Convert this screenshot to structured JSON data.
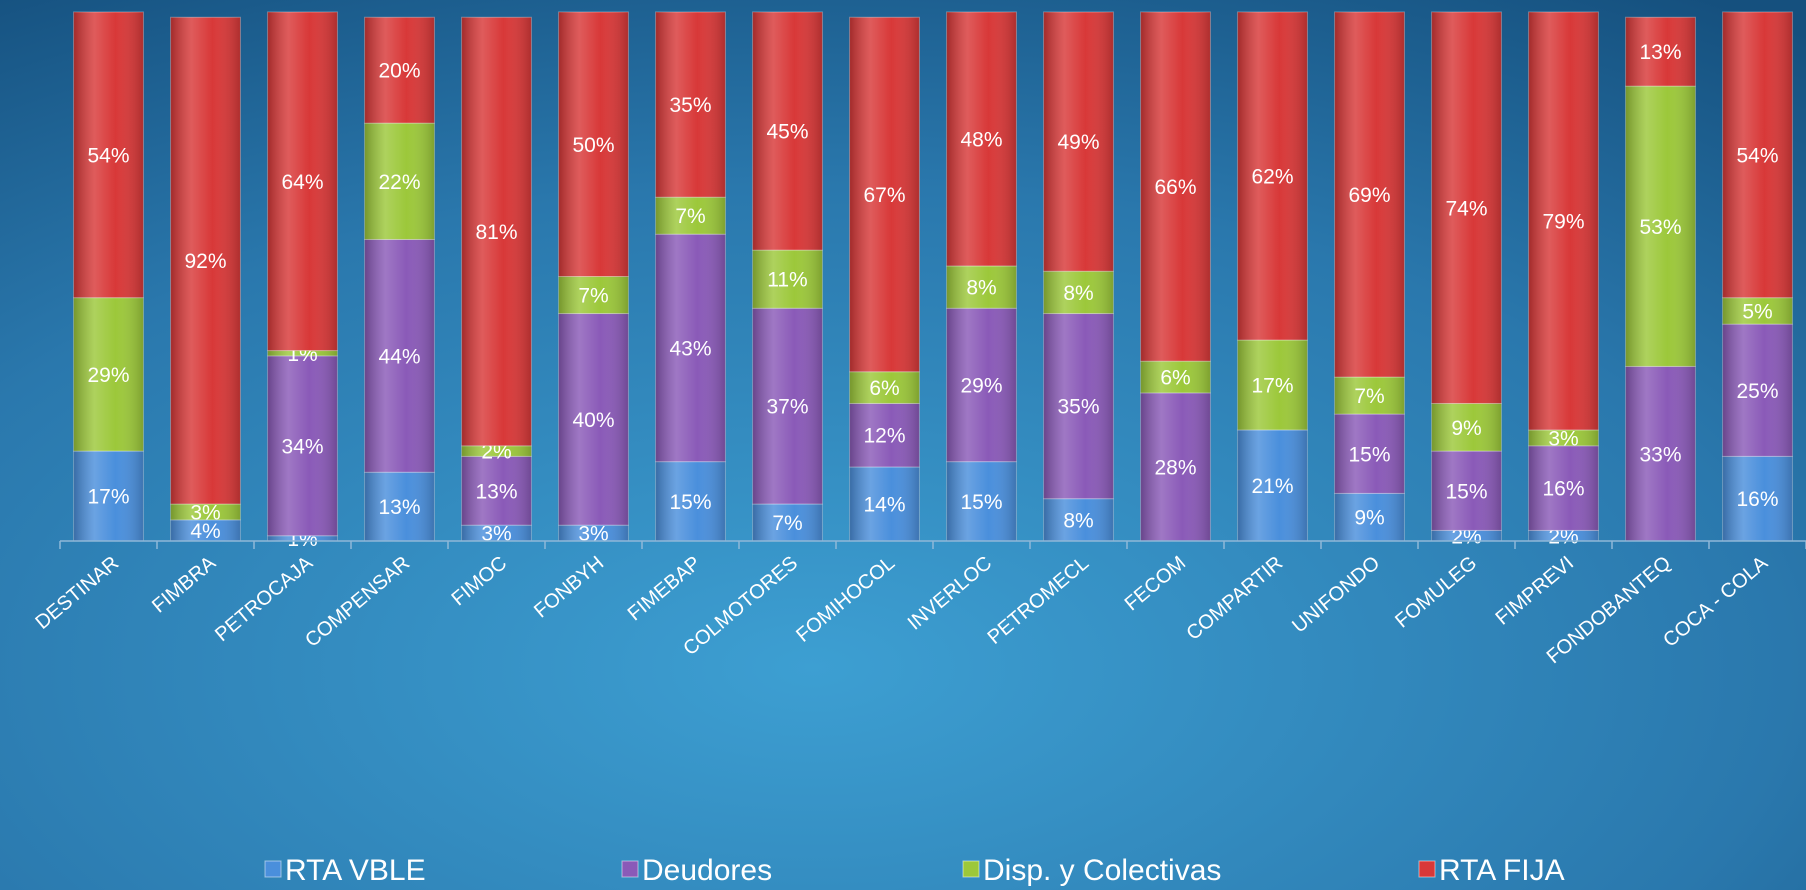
{
  "chart_data": {
    "type": "stacked-bar",
    "categories": [
      "DESTINAR",
      "FIMBRA",
      "PETROCAJA",
      "COMPENSAR",
      "FIMOC",
      "FONBYH",
      "FIMEBAP",
      "COLMOTORES",
      "FOMIHOCOL",
      "INVERLOC",
      "PETROMECL",
      "FECOM",
      "COMPARTIR",
      "UNIFONDO",
      "FOMULEG",
      "FIMPREVI",
      "FONDOBANTEQ",
      "COCA - COLA"
    ],
    "ylim": [
      0,
      100
    ],
    "series": [
      {
        "name": "RTA VBLE",
        "color": "#4a8fdc",
        "values": [
          17,
          4,
          1,
          13,
          3,
          3,
          15,
          7,
          14,
          15,
          8,
          null,
          21,
          9,
          2,
          2,
          null,
          16
        ],
        "value_labels": [
          "17%",
          "4%",
          "1%",
          "13%",
          "3%",
          "3%",
          "15%",
          "7%",
          "14%",
          "15%",
          "8%",
          null,
          "21%",
          "9%",
          "2%",
          "2%",
          null,
          "16%"
        ]
      },
      {
        "name": "Deudores",
        "color": "#8a5ab8",
        "values": [
          null,
          null,
          34,
          44,
          13,
          40,
          43,
          37,
          12,
          29,
          35,
          28,
          null,
          15,
          15,
          16,
          33,
          25
        ],
        "value_labels": [
          null,
          null,
          "34%",
          "44%",
          "13%",
          "40%",
          "43%",
          "37%",
          "12%",
          "29%",
          "35%",
          "28%",
          null,
          "15%",
          "15%",
          "16%",
          "33%",
          "25%"
        ]
      },
      {
        "name": "Disp. y Colectivas",
        "color": "#9cc83a",
        "values": [
          29,
          3,
          1,
          22,
          2,
          7,
          7,
          11,
          6,
          8,
          8,
          6,
          17,
          7,
          9,
          3,
          53,
          5
        ],
        "value_labels": [
          "29%",
          "3%",
          "1%",
          "22%",
          "2%",
          "7%",
          "7%",
          "11%",
          "6%",
          "8%",
          "8%",
          "6%",
          "17%",
          "7%",
          "9%",
          "3%",
          "53%",
          "5%"
        ]
      },
      {
        "name": "RTA FIJA",
        "color": "#d83838",
        "values": [
          54,
          92,
          64,
          20,
          81,
          50,
          35,
          45,
          67,
          48,
          49,
          66,
          62,
          69,
          74,
          79,
          13,
          54
        ],
        "value_labels": [
          "54%",
          "92%",
          "64%",
          "20%",
          "81%",
          "50%",
          "35%",
          "45%",
          "67%",
          "48%",
          "49%",
          "66%",
          "62%",
          "69%",
          "74%",
          "79%",
          "13%",
          "54%"
        ]
      }
    ]
  }
}
